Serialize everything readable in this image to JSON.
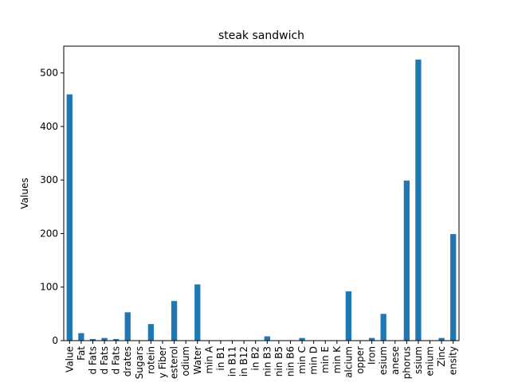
{
  "chart_data": {
    "type": "bar",
    "title": "steak sandwich",
    "xlabel": "",
    "ylabel": "Values",
    "ylim": [
      0,
      550
    ],
    "yticks": [
      0,
      100,
      200,
      300,
      400,
      500
    ],
    "grid": false,
    "legend": "none",
    "bar_color": "#1f77b4",
    "categories": [
      "Value",
      "Fat",
      "d Fats",
      "d Fats",
      "d Fats",
      "drates",
      "Sugars",
      "rotein",
      "y Fiber",
      "esterol",
      "odium",
      "Water",
      "min A",
      "in B1",
      "in B11",
      "in B12",
      "in B2",
      "nin B3",
      "nin B5",
      "nin B6",
      "min C",
      "min D",
      "min E",
      "min K",
      "alcium",
      "opper",
      "Iron",
      "esium",
      "anese",
      "phorus",
      "ssium",
      "enium",
      "Zinc",
      "ensity"
    ],
    "values": [
      460,
      14,
      3,
      5,
      3,
      53,
      0,
      31,
      0,
      74,
      0,
      105,
      0,
      0,
      0,
      0,
      0,
      8,
      0,
      0,
      5,
      0,
      0,
      0,
      92,
      0,
      5,
      50,
      0,
      299,
      525,
      0,
      5,
      199
    ]
  }
}
